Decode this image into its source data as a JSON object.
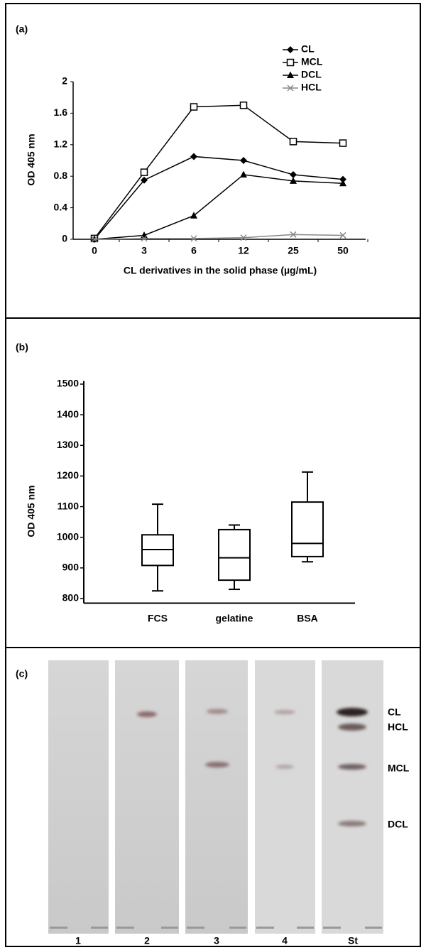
{
  "chart_data": [
    {
      "type": "line",
      "panel_label": "(a)",
      "x_label": "CL derivatives in the solid phase (µg/mL)",
      "y_label": "OD 405 nm",
      "categories": [
        "0",
        "3",
        "6",
        "12",
        "25",
        "50"
      ],
      "series": [
        {
          "name": "CL",
          "color": "#000000",
          "marker": "diamond",
          "values": [
            0,
            0.75,
            1.05,
            1.0,
            0.82,
            0.76
          ]
        },
        {
          "name": "MCL",
          "color": "#000000",
          "marker": "square-open",
          "values": [
            0.01,
            0.85,
            1.68,
            1.7,
            1.24,
            1.22
          ]
        },
        {
          "name": "DCL",
          "color": "#000000",
          "marker": "triangle",
          "values": [
            0,
            0.05,
            0.3,
            0.82,
            0.74,
            0.71
          ]
        },
        {
          "name": "HCL",
          "color": "#888888",
          "marker": "x",
          "values": [
            0,
            0.01,
            0.01,
            0.02,
            0.06,
            0.05
          ]
        }
      ],
      "ylim": [
        0,
        2
      ],
      "yticks": [
        0,
        0.4,
        0.8,
        1.2,
        1.6,
        2
      ],
      "legend": "top-right"
    },
    {
      "type": "box",
      "panel_label": "(b)",
      "y_label": "OD 405 nm",
      "categories": [
        "FCS",
        "gelatine",
        "BSA"
      ],
      "min": [
        825,
        830,
        920
      ],
      "q1": [
        908,
        860,
        937
      ],
      "median": [
        960,
        933,
        980
      ],
      "q3": [
        1008,
        1025,
        1115
      ],
      "max": [
        1108,
        1040,
        1213
      ],
      "ylim": [
        785,
        1510
      ],
      "yticks": [
        800,
        900,
        1000,
        1100,
        1200,
        1300,
        1400,
        1500
      ]
    }
  ],
  "gel": {
    "panel_label": "(c)",
    "lanes": [
      "1",
      "2",
      "3",
      "4",
      "St"
    ],
    "band_labels": [
      "CL",
      "HCL",
      "MCL",
      "DCL"
    ]
  }
}
